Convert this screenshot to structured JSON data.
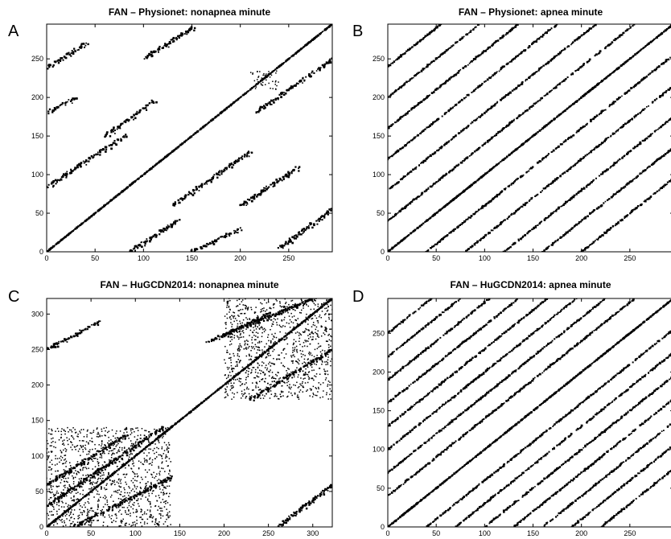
{
  "chart_data": [
    {
      "type": "scatter",
      "panel_letter": "A",
      "title": "FAN – Physionet: nonapnea minute",
      "xlim": [
        0,
        295
      ],
      "ylim": [
        0,
        295
      ],
      "xticks": [
        0,
        50,
        100,
        150,
        200,
        250
      ],
      "yticks": [
        0,
        50,
        100,
        150,
        200,
        250
      ],
      "grid": false,
      "pattern": "recurrence plot: main diagonal plus off-diagonal line segments",
      "main_diagonal": [
        [
          0,
          0
        ],
        [
          295,
          295
        ]
      ],
      "segments": [
        [
          [
            0,
            84
          ],
          [
            80,
            150
          ]
        ],
        [
          [
            0,
            238
          ],
          [
            40,
            270
          ]
        ],
        [
          [
            85,
            0
          ],
          [
            135,
            40
          ]
        ],
        [
          [
            130,
            60
          ],
          [
            210,
            130
          ]
        ],
        [
          [
            60,
            150
          ],
          [
            110,
            195
          ]
        ],
        [
          [
            150,
            0
          ],
          [
            200,
            30
          ]
        ],
        [
          [
            240,
            5
          ],
          [
            295,
            55
          ]
        ],
        [
          [
            0,
            180
          ],
          [
            30,
            200
          ]
        ],
        [
          [
            200,
            60
          ],
          [
            260,
            110
          ]
        ],
        [
          [
            215,
            180
          ],
          [
            295,
            250
          ]
        ],
        [
          [
            100,
            250
          ],
          [
            150,
            290
          ]
        ]
      ],
      "blocks": [
        [
          [
            210,
            210
          ],
          [
            240,
            235
          ]
        ]
      ]
    },
    {
      "type": "scatter",
      "panel_letter": "B",
      "title": "FAN – Physionet: apnea minute",
      "xlim": [
        0,
        295
      ],
      "ylim": [
        0,
        295
      ],
      "xticks": [
        0,
        50,
        100,
        150,
        200,
        250
      ],
      "yticks": [
        0,
        50,
        100,
        150,
        200,
        250
      ],
      "grid": false,
      "pattern": "recurrence plot: main diagonal plus many parallel diagonals",
      "main_diagonal": [
        [
          0,
          0
        ],
        [
          295,
          295
        ]
      ],
      "diagonal_offsets": [
        -200,
        -160,
        -120,
        -80,
        -40,
        40,
        80,
        120,
        160,
        200,
        240
      ]
    },
    {
      "type": "scatter",
      "panel_letter": "C",
      "title": "FAN – HuGCDN2014: nonapnea minute",
      "xlim": [
        0,
        322
      ],
      "ylim": [
        0,
        322
      ],
      "xticks": [
        0,
        50,
        100,
        150,
        200,
        250,
        300
      ],
      "yticks": [
        0,
        50,
        100,
        150,
        200,
        250,
        300
      ],
      "grid": false,
      "pattern": "recurrence plot: main diagonal with dense lower-left and upper-right blocks",
      "main_diagonal": [
        [
          0,
          0
        ],
        [
          322,
          322
        ]
      ],
      "segments": [
        [
          [
            0,
            30
          ],
          [
            130,
            140
          ]
        ],
        [
          [
            0,
            60
          ],
          [
            90,
            130
          ]
        ],
        [
          [
            30,
            0
          ],
          [
            140,
            70
          ]
        ],
        [
          [
            200,
            270
          ],
          [
            300,
            322
          ]
        ],
        [
          [
            230,
            180
          ],
          [
            322,
            250
          ]
        ],
        [
          [
            180,
            260
          ],
          [
            250,
            300
          ]
        ],
        [
          [
            260,
            0
          ],
          [
            322,
            60
          ]
        ],
        [
          [
            0,
            250
          ],
          [
            60,
            290
          ]
        ]
      ],
      "blocks": [
        [
          [
            0,
            0
          ],
          [
            140,
            140
          ]
        ],
        [
          [
            200,
            180
          ],
          [
            322,
            322
          ]
        ]
      ]
    },
    {
      "type": "scatter",
      "panel_letter": "D",
      "title": "FAN – HuGCDN2014: apnea minute",
      "xlim": [
        0,
        295
      ],
      "ylim": [
        0,
        295
      ],
      "xticks": [
        0,
        50,
        100,
        150,
        200,
        250
      ],
      "yticks": [
        0,
        50,
        100,
        150,
        200,
        250
      ],
      "grid": false,
      "pattern": "recurrence plot: main diagonal plus many closely spaced parallel diagonals",
      "main_diagonal": [
        [
          0,
          0
        ],
        [
          295,
          295
        ]
      ],
      "diagonal_offsets": [
        -220,
        -190,
        -160,
        -130,
        -100,
        -70,
        -40,
        40,
        70,
        100,
        130,
        160,
        190,
        220,
        250
      ]
    }
  ]
}
